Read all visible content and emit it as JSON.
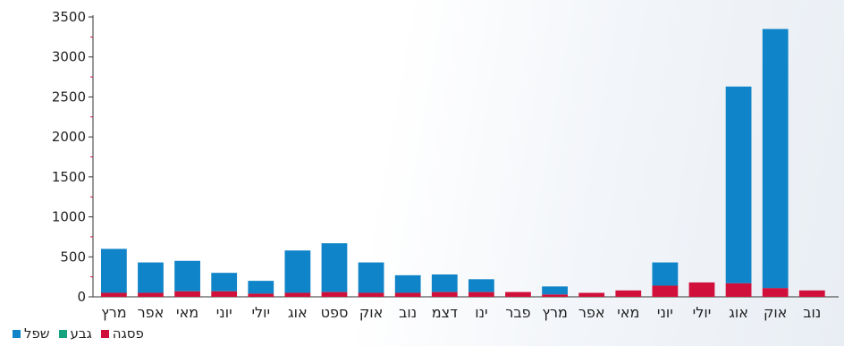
{
  "chart_data": {
    "type": "bar",
    "stacked": true,
    "categories": [
      "מרץ",
      "אפר",
      "מאי",
      "יוני",
      "יולי",
      "אוג",
      "ספט",
      "אוק",
      "נוב",
      "דצמ",
      "ינו",
      "פבר",
      "מרץ",
      "אפר",
      "מאי",
      "יוני",
      "יולי",
      "אוג",
      "אוק",
      "נוב"
    ],
    "series": [
      {
        "name": "שפל",
        "color": "#0f84c8",
        "values": [
          550,
          380,
          380,
          230,
          160,
          530,
          610,
          380,
          220,
          220,
          160,
          0,
          100,
          0,
          0,
          290,
          0,
          2460,
          3240,
          0
        ]
      },
      {
        "name": "גבע",
        "color": "#14a37f",
        "values": [
          0,
          0,
          0,
          0,
          0,
          0,
          0,
          0,
          0,
          0,
          0,
          0,
          0,
          0,
          0,
          0,
          0,
          0,
          0,
          0
        ]
      },
      {
        "name": "פסגה",
        "color": "#d0103a",
        "values": [
          50,
          50,
          70,
          70,
          40,
          50,
          60,
          50,
          50,
          60,
          60,
          60,
          30,
          50,
          80,
          140,
          180,
          170,
          110,
          80
        ]
      }
    ],
    "yticks": [
      0,
      500,
      1000,
      1500,
      2000,
      2500,
      3000,
      3500
    ],
    "ylim": [
      0,
      3500
    ],
    "grid": false,
    "legend_position": "bottom-left",
    "title": "",
    "xlabel": "",
    "ylabel": ""
  },
  "legend": {
    "items": [
      {
        "label": "שפל",
        "color": "#0f84c8"
      },
      {
        "label": "גבע",
        "color": "#14a37f"
      },
      {
        "label": "פסגה",
        "color": "#d0103a"
      }
    ]
  }
}
